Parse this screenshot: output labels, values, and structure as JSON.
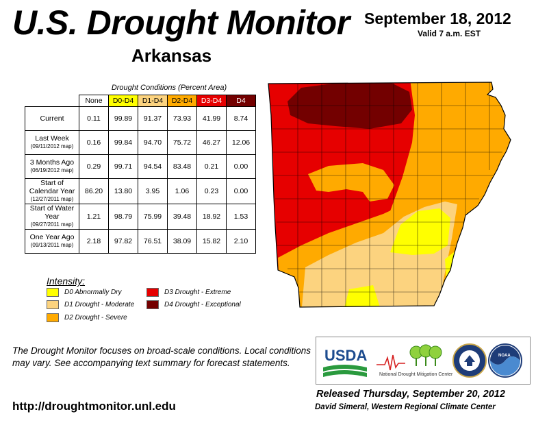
{
  "header": {
    "title": "U.S. Drought Monitor",
    "state": "Arkansas",
    "date": "September 18, 2012",
    "valid": "Valid 7 a.m. EST"
  },
  "table": {
    "caption": "Drought Conditions (Percent Area)",
    "columns": [
      {
        "label": "None",
        "color": "#ffffff"
      },
      {
        "label": "D0-D4",
        "color": "#ffff00"
      },
      {
        "label": "D1-D4",
        "color": "#fcd37f"
      },
      {
        "label": "D2-D4",
        "color": "#ffaa00"
      },
      {
        "label": "D3-D4",
        "color": "#e60000"
      },
      {
        "label": "D4",
        "color": "#730000"
      }
    ],
    "rows": [
      {
        "label": "Current",
        "sub": "",
        "values": [
          "0.11",
          "99.89",
          "91.37",
          "73.93",
          "41.99",
          "8.74"
        ]
      },
      {
        "label": "Last Week",
        "sub": "(09/11/2012 map)",
        "values": [
          "0.16",
          "99.84",
          "94.70",
          "75.72",
          "46.27",
          "12.06"
        ]
      },
      {
        "label": "3 Months Ago",
        "sub": "(06/19/2012 map)",
        "values": [
          "0.29",
          "99.71",
          "94.54",
          "83.48",
          "0.21",
          "0.00"
        ]
      },
      {
        "label": "Start of Calendar Year",
        "sub": "(12/27/2011 map)",
        "values": [
          "86.20",
          "13.80",
          "3.95",
          "1.06",
          "0.23",
          "0.00"
        ]
      },
      {
        "label": "Start of Water Year",
        "sub": "(09/27/2011 map)",
        "values": [
          "1.21",
          "98.79",
          "75.99",
          "39.48",
          "18.92",
          "1.53"
        ]
      },
      {
        "label": "One Year Ago",
        "sub": "(09/13/2011 map)",
        "values": [
          "2.18",
          "97.82",
          "76.51",
          "38.09",
          "15.82",
          "2.10"
        ]
      }
    ]
  },
  "legend": {
    "title": "Intensity:",
    "items": [
      {
        "label": "D0 Abnormally Dry",
        "color": "#ffff00"
      },
      {
        "label": "D1 Drought - Moderate",
        "color": "#fcd37f"
      },
      {
        "label": "D2 Drought - Severe",
        "color": "#ffaa00"
      },
      {
        "label": "D3 Drought - Extreme",
        "color": "#e60000"
      },
      {
        "label": "D4 Drought - Exceptional",
        "color": "#730000"
      }
    ]
  },
  "footer": {
    "note": "The Drought Monitor focuses on broad-scale conditions. Local conditions may vary. See accompanying text summary for forecast statements.",
    "url": "http://droughtmonitor.unl.edu",
    "released": "Released Thursday, September 20, 2012",
    "author": "David Simeral, Western Regional Climate Center"
  },
  "logos": {
    "usda": "USDA",
    "ndmc": "National Drought Mitigation Center",
    "noaa": "NOAA"
  }
}
